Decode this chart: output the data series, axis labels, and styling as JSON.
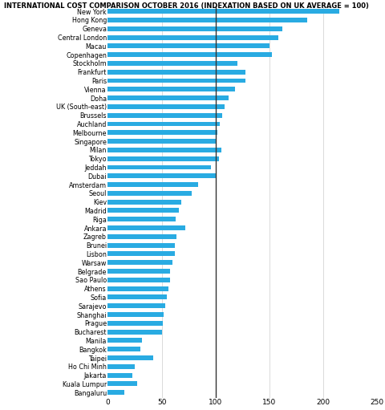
{
  "title": "INTERNATIONAL COST COMPARISON OCTOBER 2016 (INDEXATION BASED ON UK AVERAGE = 100)",
  "cities": [
    "New York",
    "Hong Kong",
    "Geneva",
    "Central London",
    "Macau",
    "Copenhagen",
    "Stockholm",
    "Frankfurt",
    "Paris",
    "Vienna",
    "Doha",
    "UK (South-east)",
    "Brussels",
    "Auchland",
    "Melbourne",
    "Singapore",
    "Milan",
    "Tokyo",
    "Jeddah",
    "Dubai",
    "Amsterdam",
    "Seoul",
    "Kiev",
    "Madrid",
    "Riga",
    "Ankara",
    "Zagreb",
    "Brunei",
    "Lisbon",
    "Warsaw",
    "Belgrade",
    "Sao Paulo",
    "Athens",
    "Sofia",
    "Sarajevo",
    "Shanghai",
    "Prague",
    "Bucharest",
    "Manila",
    "Bangkok",
    "Taipei",
    "Ho Chi Minh",
    "Jakarta",
    "Kuala Lumpur",
    "Bangaluru"
  ],
  "values": [
    215,
    185,
    162,
    158,
    150,
    152,
    120,
    128,
    128,
    118,
    112,
    108,
    106,
    104,
    102,
    100,
    105,
    103,
    96,
    100,
    84,
    78,
    68,
    66,
    63,
    72,
    64,
    62,
    62,
    60,
    58,
    58,
    56,
    55,
    53,
    52,
    51,
    50,
    32,
    30,
    42,
    25,
    23,
    27,
    15
  ],
  "bar_color": "#29ABE2",
  "reference_line": 100,
  "xlim": [
    0,
    250
  ],
  "xticks": [
    0,
    50,
    100,
    150,
    200,
    250
  ],
  "grid_lines": [
    50,
    100,
    150,
    200,
    250
  ],
  "background_color": "#ffffff",
  "title_fontsize": 6.0,
  "label_fontsize": 5.8,
  "tick_fontsize": 6.5,
  "bar_height": 0.55
}
